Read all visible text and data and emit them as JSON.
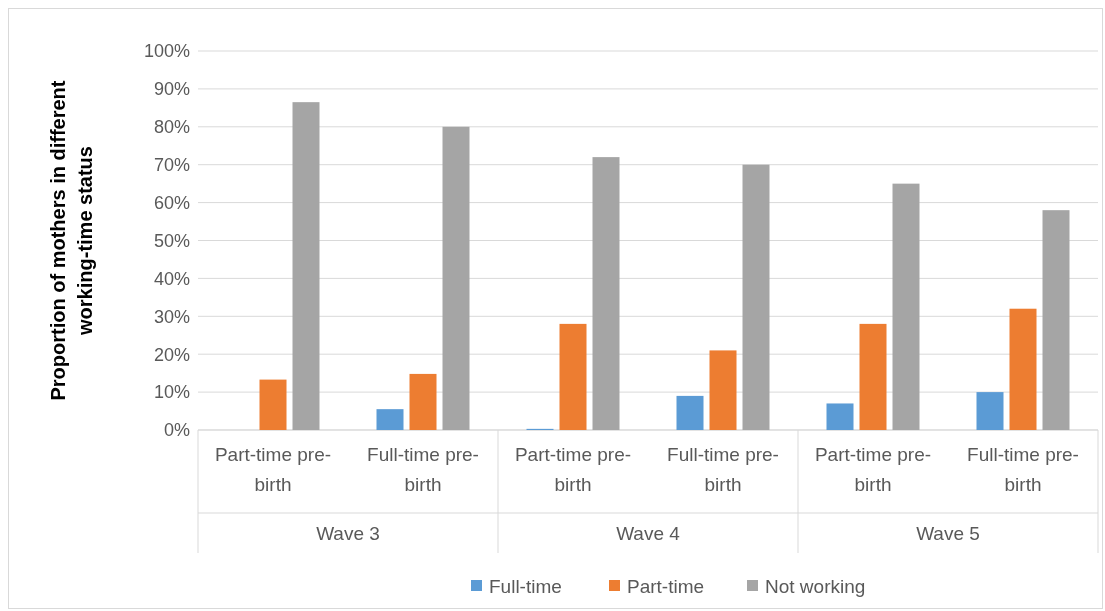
{
  "chart_data": {
    "type": "bar",
    "ylabel": "Proportion of mothers in different working-time status",
    "categories": [
      "Part-time pre-birth",
      "Full-time pre-birth",
      "Part-time pre-birth",
      "Full-time pre-birth",
      "Part-time pre-birth",
      "Full-time pre-birth"
    ],
    "annotations": [
      "Wave 3",
      "Wave 4",
      "Wave 5"
    ],
    "series": [
      {
        "name": "Full-time",
        "color": "#5b9bd5",
        "values": [
          0,
          5.5,
          0.3,
          9,
          7,
          10
        ]
      },
      {
        "name": "Part-time",
        "color": "#ed7d31",
        "values": [
          13.3,
          14.8,
          28,
          21,
          28,
          32
        ]
      },
      {
        "name": "Not working",
        "color": "#a5a5a5",
        "values": [
          86.5,
          80,
          72,
          70,
          65,
          58
        ]
      }
    ],
    "ylim": [
      0,
      100
    ],
    "yticks": [
      {
        "value": 0,
        "label": "0%"
      },
      {
        "value": 10,
        "label": "10%"
      },
      {
        "value": 20,
        "label": "20%"
      },
      {
        "value": 30,
        "label": "30%"
      },
      {
        "value": 40,
        "label": "40%"
      },
      {
        "value": 50,
        "label": "50%"
      },
      {
        "value": 60,
        "label": "60%"
      },
      {
        "value": 70,
        "label": "70%"
      },
      {
        "value": 80,
        "label": "80%"
      },
      {
        "value": 90,
        "label": "90%"
      },
      {
        "value": 100,
        "label": "100%"
      }
    ],
    "grid": "y",
    "legend": "bottom"
  }
}
